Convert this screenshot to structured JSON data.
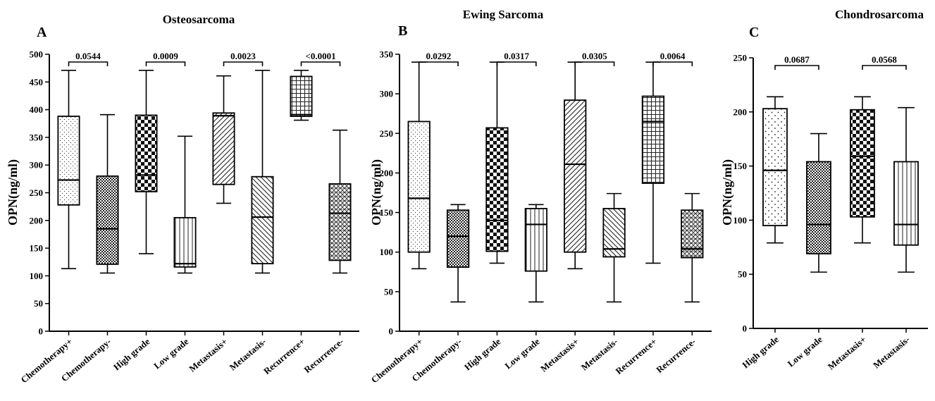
{
  "chart_data": [
    {
      "type": "box",
      "panel_label": "A",
      "title": "Osteosarcoma",
      "ylabel": "OPN(ng/ml)",
      "ylim": [
        0,
        500
      ],
      "yticks": [
        0,
        50,
        100,
        150,
        200,
        250,
        300,
        350,
        400,
        450,
        500
      ],
      "categories": [
        "Chemotherapy+",
        "Chemotherapy-",
        "High grade",
        "Low grade",
        "Metastasis+",
        "Metastasis-",
        "Recurrence+",
        "Recurrence-"
      ],
      "boxes": [
        {
          "category": "Chemotherapy+",
          "min": 113,
          "q1": 228,
          "median": 273,
          "q3": 388,
          "max": 471,
          "pattern": "dots-fine"
        },
        {
          "category": "Chemotherapy-",
          "min": 105,
          "q1": 121,
          "median": 185,
          "q3": 280,
          "max": 391,
          "pattern": "check-small"
        },
        {
          "category": "High grade",
          "min": 140,
          "q1": 252,
          "median": 282,
          "q3": 390,
          "max": 471,
          "pattern": "check-large"
        },
        {
          "category": "Low grade",
          "min": 105,
          "q1": 116,
          "median": 122,
          "q3": 205,
          "max": 352,
          "pattern": "vlines"
        },
        {
          "category": "Metastasis+",
          "min": 231,
          "q1": 265,
          "median": 389,
          "q3": 394,
          "max": 461,
          "pattern": "diag-fwd"
        },
        {
          "category": "Metastasis-",
          "min": 105,
          "q1": 122,
          "median": 206,
          "q3": 279,
          "max": 471,
          "pattern": "diag-back"
        },
        {
          "category": "Recurrence+",
          "min": 381,
          "q1": 388,
          "median": 391,
          "q3": 460,
          "max": 471,
          "pattern": "grid"
        },
        {
          "category": "Recurrence-",
          "min": 105,
          "q1": 128,
          "median": 213,
          "q3": 266,
          "max": 363,
          "pattern": "crosshatch"
        }
      ],
      "comparisons": [
        {
          "between": [
            "Chemotherapy+",
            "Chemotherapy-"
          ],
          "p": "0.0544"
        },
        {
          "between": [
            "High grade",
            "Low grade"
          ],
          "p": "0.0009"
        },
        {
          "between": [
            "Metastasis+",
            "Metastasis-"
          ],
          "p": "0.0023"
        },
        {
          "between": [
            "Recurrence+",
            "Recurrence-"
          ],
          "p": "<0.0001"
        }
      ]
    },
    {
      "type": "box",
      "panel_label": "B",
      "title": "Ewing Sarcoma",
      "ylabel": "OPN(ng/ml)",
      "ylim": [
        0,
        350
      ],
      "yticks": [
        0,
        50,
        100,
        150,
        200,
        250,
        300,
        350
      ],
      "categories": [
        "Chemotherapy+",
        "Chemotherapy-",
        "High grade",
        "Low grade",
        "Metastasis+",
        "Metastasis-",
        "Recurrence+",
        "Recurrence-"
      ],
      "boxes": [
        {
          "category": "Chemotherapy+",
          "min": 79,
          "q1": 100,
          "median": 168,
          "q3": 265,
          "max": 340,
          "pattern": "dots-fine"
        },
        {
          "category": "Chemotherapy-",
          "min": 37,
          "q1": 81,
          "median": 120,
          "q3": 153,
          "max": 160,
          "pattern": "check-small"
        },
        {
          "category": "High grade",
          "min": 86,
          "q1": 101,
          "median": 140,
          "q3": 257,
          "max": 340,
          "pattern": "check-large"
        },
        {
          "category": "Low grade",
          "min": 37,
          "q1": 76,
          "median": 135,
          "q3": 155,
          "max": 160,
          "pattern": "vlines"
        },
        {
          "category": "Metastasis+",
          "min": 79,
          "q1": 100,
          "median": 211,
          "q3": 292,
          "max": 340,
          "pattern": "diag-fwd"
        },
        {
          "category": "Metastasis-",
          "min": 37,
          "q1": 94,
          "median": 104,
          "q3": 155,
          "max": 174,
          "pattern": "diag-back"
        },
        {
          "category": "Recurrence+",
          "min": 86,
          "q1": 187,
          "median": 265,
          "q3": 297,
          "max": 340,
          "pattern": "grid"
        },
        {
          "category": "Recurrence-",
          "min": 37,
          "q1": 93,
          "median": 104,
          "q3": 153,
          "max": 174,
          "pattern": "crosshatch"
        }
      ],
      "comparisons": [
        {
          "between": [
            "Chemotherapy+",
            "Chemotherapy-"
          ],
          "p": "0.0292"
        },
        {
          "between": [
            "High grade",
            "Low grade"
          ],
          "p": "0.0317"
        },
        {
          "between": [
            "Metastasis+",
            "Metastasis-"
          ],
          "p": "0.0305"
        },
        {
          "between": [
            "Recurrence+",
            "Recurrence-"
          ],
          "p": "0.0064"
        }
      ]
    },
    {
      "type": "box",
      "panel_label": "C",
      "title": "Chondrosarcoma",
      "ylabel": "OPN(ng/ml)",
      "ylim": [
        0,
        250
      ],
      "yticks": [
        0,
        50,
        100,
        150,
        200,
        250
      ],
      "categories": [
        "High grade",
        "Low grade",
        "Metastasis+",
        "Metastasis-"
      ],
      "boxes": [
        {
          "category": "High grade",
          "min": 79,
          "q1": 95,
          "median": 146,
          "q3": 203,
          "max": 214,
          "pattern": "dots-sparse"
        },
        {
          "category": "Low grade",
          "min": 52,
          "q1": 69,
          "median": 96,
          "q3": 154,
          "max": 180,
          "pattern": "check-small"
        },
        {
          "category": "Metastasis+",
          "min": 79,
          "q1": 103,
          "median": 159,
          "q3": 202,
          "max": 214,
          "pattern": "check-large"
        },
        {
          "category": "Metastasis-",
          "min": 52,
          "q1": 77,
          "median": 96,
          "q3": 154,
          "max": 204,
          "pattern": "vlines"
        }
      ],
      "comparisons": [
        {
          "between": [
            "High grade",
            "Low grade"
          ],
          "p": "0.0687"
        },
        {
          "between": [
            "Metastasis+",
            "Metastasis-"
          ],
          "p": "0.0568"
        }
      ]
    }
  ]
}
